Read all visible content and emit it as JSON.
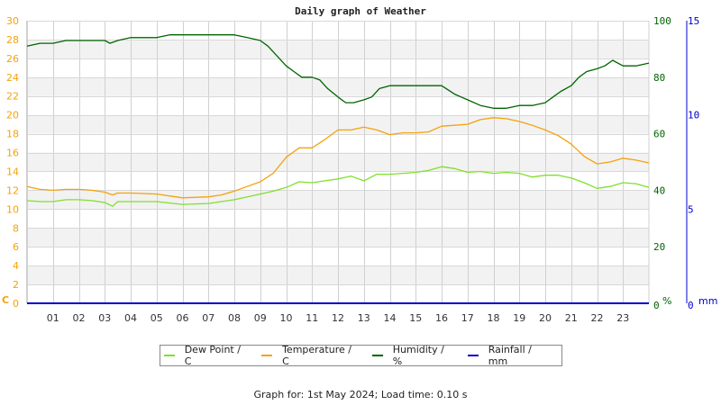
{
  "chart_data": {
    "type": "line",
    "title": "Daily graph of Weather",
    "xlabel": "",
    "x_ticks": [
      "01",
      "02",
      "03",
      "04",
      "05",
      "06",
      "07",
      "08",
      "09",
      "10",
      "11",
      "12",
      "13",
      "14",
      "15",
      "16",
      "17",
      "18",
      "19",
      "20",
      "21",
      "22",
      "23"
    ],
    "xlim": [
      0,
      24
    ],
    "axes": {
      "left": {
        "label": "C",
        "ylim": [
          0,
          30
        ],
        "ticks": [
          0,
          2,
          4,
          6,
          8,
          10,
          12,
          14,
          16,
          18,
          20,
          22,
          24,
          26,
          28,
          30
        ],
        "color": "#f5a20a"
      },
      "right1": {
        "label": "%",
        "ylim": [
          0,
          100
        ],
        "ticks": [
          0,
          20,
          40,
          60,
          80,
          100
        ],
        "color": "#006400"
      },
      "right2": {
        "label": "mm",
        "ylim": [
          0,
          15
        ],
        "ticks": [
          0,
          5,
          10,
          15
        ],
        "color": "#0000cc"
      }
    },
    "grid": true,
    "legend_position": "bottom",
    "series": [
      {
        "name": "Dew Point / C",
        "color": "#7fe02a",
        "axis": "left",
        "x": [
          0,
          0.5,
          1,
          1.5,
          2,
          2.5,
          3,
          3.3,
          3.5,
          4,
          5,
          6,
          7,
          8,
          9,
          9.5,
          10,
          10.5,
          11,
          11.5,
          12,
          12.5,
          13,
          13.5,
          14,
          14.5,
          15,
          15.5,
          16,
          16.5,
          17,
          17.5,
          18,
          18.5,
          19,
          19.5,
          20,
          20.5,
          21,
          21.5,
          22,
          22.5,
          23,
          23.5,
          24
        ],
        "values": [
          10.9,
          10.8,
          10.8,
          11.0,
          11.0,
          10.9,
          10.7,
          10.3,
          10.8,
          10.8,
          10.8,
          10.5,
          10.6,
          11.0,
          11.6,
          11.9,
          12.3,
          12.9,
          12.8,
          13.0,
          13.2,
          13.5,
          13.0,
          13.7,
          13.7,
          13.8,
          13.9,
          14.1,
          14.5,
          14.3,
          13.9,
          14.0,
          13.8,
          13.9,
          13.8,
          13.4,
          13.6,
          13.6,
          13.3,
          12.8,
          12.2,
          12.4,
          12.8,
          12.7,
          12.3
        ]
      },
      {
        "name": "Temperature / C",
        "color": "#f5a20a",
        "axis": "left",
        "x": [
          0,
          0.5,
          1,
          1.5,
          2,
          2.5,
          3,
          3.3,
          3.5,
          4,
          5,
          6,
          7,
          7.5,
          8,
          8.5,
          9,
          9.5,
          10,
          10.5,
          11,
          11.5,
          12,
          12.5,
          13,
          13.5,
          14,
          14.5,
          15,
          15.5,
          16,
          16.5,
          17,
          17.5,
          18,
          18.5,
          19,
          19.5,
          20,
          20.5,
          21,
          21.5,
          22,
          22.5,
          23,
          23.5,
          24
        ],
        "values": [
          12.4,
          12.1,
          12.0,
          12.1,
          12.1,
          12.0,
          11.8,
          11.5,
          11.7,
          11.7,
          11.6,
          11.2,
          11.3,
          11.5,
          11.9,
          12.4,
          12.9,
          13.8,
          15.5,
          16.5,
          16.5,
          17.4,
          18.4,
          18.4,
          18.7,
          18.4,
          17.9,
          18.1,
          18.1,
          18.2,
          18.8,
          18.9,
          19.0,
          19.5,
          19.7,
          19.6,
          19.3,
          18.9,
          18.4,
          17.8,
          16.9,
          15.6,
          14.8,
          15.0,
          15.4,
          15.2,
          14.9
        ]
      },
      {
        "name": "Humidity / %",
        "color": "#006400",
        "axis": "right1",
        "x": [
          0,
          0.5,
          1,
          1.5,
          2,
          2.5,
          3,
          3.2,
          3.5,
          4,
          5,
          5.5,
          6,
          6.5,
          7,
          7.5,
          8,
          8.5,
          9,
          9.3,
          9.6,
          10,
          10.3,
          10.6,
          11,
          11.3,
          11.6,
          12,
          12.3,
          12.6,
          13,
          13.3,
          13.6,
          14,
          14.5,
          15,
          15.5,
          16,
          16.5,
          17,
          17.5,
          18,
          18.5,
          19,
          19.5,
          20,
          20.3,
          20.6,
          21,
          21.3,
          21.6,
          22,
          22.3,
          22.6,
          23,
          23.5,
          24
        ],
        "values": [
          91,
          92,
          92,
          93,
          93,
          93,
          93,
          92,
          93,
          94,
          94,
          95,
          95,
          95,
          95,
          95,
          95,
          94,
          93,
          91,
          88,
          84,
          82,
          80,
          80,
          79,
          76,
          73,
          71,
          71,
          72,
          73,
          76,
          77,
          77,
          77,
          77,
          77,
          74,
          72,
          70,
          69,
          69,
          70,
          70,
          71,
          73,
          75,
          77,
          80,
          82,
          83,
          84,
          86,
          84,
          84,
          85
        ]
      },
      {
        "name": "Rainfall / mm",
        "color": "#0000cc",
        "axis": "right2",
        "x": [
          0,
          24
        ],
        "values": [
          0,
          0
        ]
      }
    ]
  },
  "legend": {
    "items": [
      {
        "label": "Dew Point / C",
        "color": "#7fe02a"
      },
      {
        "label": "Temperature / C",
        "color": "#f5a20a"
      },
      {
        "label": "Humidity / %",
        "color": "#006400"
      },
      {
        "label": "Rainfall / mm",
        "color": "#0000cc"
      }
    ]
  },
  "footer": {
    "text": "Graph for: 1st May 2024; Load time: 0.10 s"
  }
}
